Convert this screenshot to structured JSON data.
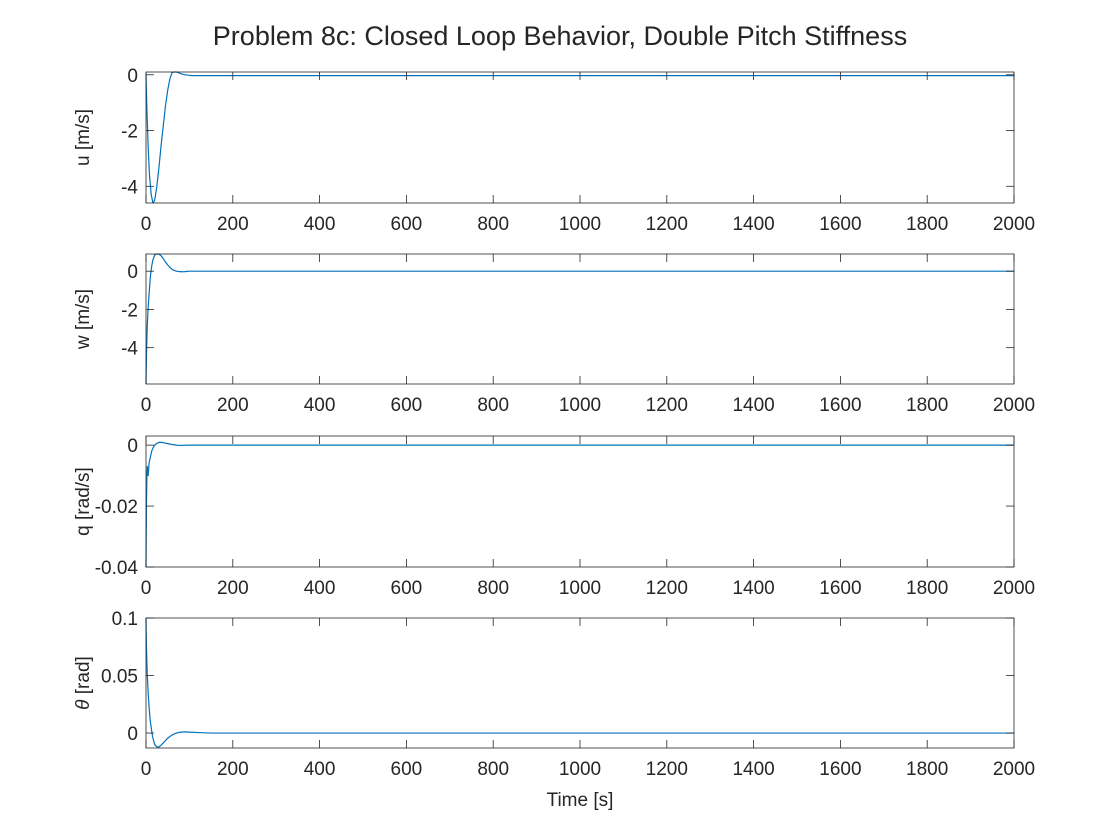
{
  "figure": {
    "title": "Problem 8c: Closed Loop Behavior, Double Pitch Stiffness",
    "xlabel": "Time [s]",
    "line_color": "#0072BD",
    "axis_color": "#262626"
  },
  "chart_data": [
    {
      "type": "line",
      "ylabel": "u [m/s]",
      "ylabel_greek": "",
      "ylabel_rest": "u [m/s]",
      "xlim": [
        0,
        2000
      ],
      "ylim": [
        -4.6,
        0.1
      ],
      "xticks": [
        0,
        200,
        400,
        600,
        800,
        1000,
        1200,
        1400,
        1600,
        1800,
        2000
      ],
      "yticks": [
        -4,
        -2,
        0
      ],
      "ytick_labels": [
        "-4",
        "-2",
        "0"
      ],
      "series": [
        {
          "name": "u",
          "x": [
            0,
            2,
            5,
            8,
            12,
            16,
            20,
            25,
            30,
            35,
            40,
            45,
            50,
            55,
            60,
            65,
            70,
            75,
            80,
            90,
            100,
            110,
            120,
            150,
            200,
            300,
            500,
            1000,
            1500,
            2000
          ],
          "y": [
            0,
            -1.2,
            -2.6,
            -3.6,
            -4.3,
            -4.6,
            -4.5,
            -4.0,
            -3.3,
            -2.5,
            -1.8,
            -1.1,
            -0.55,
            -0.15,
            0.08,
            0.14,
            0.12,
            0.08,
            0.04,
            0.0,
            -0.02,
            -0.03,
            -0.03,
            -0.03,
            -0.03,
            -0.03,
            -0.03,
            -0.03,
            -0.03,
            -0.03
          ]
        }
      ]
    },
    {
      "type": "line",
      "ylabel": "w [m/s]",
      "ylabel_greek": "",
      "ylabel_rest": "w [m/s]",
      "xlim": [
        0,
        2000
      ],
      "ylim": [
        -5.9,
        0.9
      ],
      "xticks": [
        0,
        200,
        400,
        600,
        800,
        1000,
        1200,
        1400,
        1600,
        1800,
        2000
      ],
      "yticks": [
        -4,
        -2,
        0
      ],
      "ytick_labels": [
        "-4",
        "-2",
        "0"
      ],
      "series": [
        {
          "name": "w",
          "x": [
            0,
            1,
            2,
            3,
            5,
            8,
            10,
            13,
            16,
            20,
            25,
            30,
            35,
            40,
            45,
            50,
            55,
            60,
            65,
            70,
            80,
            90,
            100,
            120,
            150,
            200,
            500,
            1000,
            1500,
            2000
          ],
          "y": [
            -5.9,
            -4.5,
            -3.6,
            -2.8,
            -1.9,
            -0.9,
            -0.3,
            0.25,
            0.6,
            0.85,
            0.95,
            0.92,
            0.8,
            0.65,
            0.48,
            0.33,
            0.2,
            0.1,
            0.04,
            0.0,
            -0.03,
            -0.02,
            0.0,
            0.0,
            0.0,
            0.0,
            0.0,
            0.0,
            0.0,
            0.0
          ]
        }
      ]
    },
    {
      "type": "line",
      "ylabel": "q [rad/s]",
      "ylabel_greek": "",
      "ylabel_rest": "q [rad/s]",
      "xlim": [
        0,
        2000
      ],
      "ylim": [
        -0.04,
        0.003
      ],
      "xticks": [
        0,
        200,
        400,
        600,
        800,
        1000,
        1200,
        1400,
        1600,
        1800,
        2000
      ],
      "yticks": [
        -0.04,
        -0.02,
        0
      ],
      "ytick_labels": [
        "-0.04",
        "-0.02",
        "0"
      ],
      "series": [
        {
          "name": "q",
          "x": [
            0,
            1,
            2,
            3,
            4,
            5,
            7,
            10,
            13,
            16,
            20,
            25,
            30,
            35,
            40,
            50,
            60,
            70,
            80,
            100,
            150,
            200,
            500,
            1000,
            1500,
            2000
          ],
          "y": [
            -0.04,
            -0.02,
            -0.011,
            -0.007,
            -0.008,
            -0.01,
            -0.006,
            -0.004,
            -0.002,
            -0.001,
            0.0,
            0.0006,
            0.0009,
            0.0009,
            0.0008,
            0.0005,
            0.0002,
            0.0,
            -0.0001,
            0.0,
            0.0,
            0.0,
            0.0,
            0.0,
            0.0,
            0.0
          ]
        }
      ]
    },
    {
      "type": "line",
      "ylabel": "θ [rad]",
      "ylabel_greek": "θ",
      "ylabel_rest": " [rad]",
      "xlim": [
        0,
        2000
      ],
      "ylim": [
        -0.013,
        0.1
      ],
      "xticks": [
        0,
        200,
        400,
        600,
        800,
        1000,
        1200,
        1400,
        1600,
        1800,
        2000
      ],
      "yticks": [
        0,
        0.05,
        0.1
      ],
      "ytick_labels": [
        "0",
        "0.05",
        "0.1"
      ],
      "series": [
        {
          "name": "theta",
          "x": [
            0,
            1,
            3,
            5,
            8,
            10,
            15,
            20,
            25,
            30,
            35,
            40,
            45,
            50,
            55,
            60,
            65,
            70,
            80,
            90,
            100,
            120,
            150,
            200,
            500,
            1000,
            1500,
            2000
          ],
          "y": [
            0.1,
            0.075,
            0.05,
            0.035,
            0.018,
            0.01,
            -0.003,
            -0.01,
            -0.012,
            -0.012,
            -0.0105,
            -0.0085,
            -0.0065,
            -0.0045,
            -0.003,
            -0.0018,
            -0.0008,
            0.0,
            0.0008,
            0.001,
            0.0008,
            0.0004,
            0.0,
            0.0,
            0.0,
            0.0,
            0.0,
            0.0
          ]
        }
      ]
    }
  ]
}
